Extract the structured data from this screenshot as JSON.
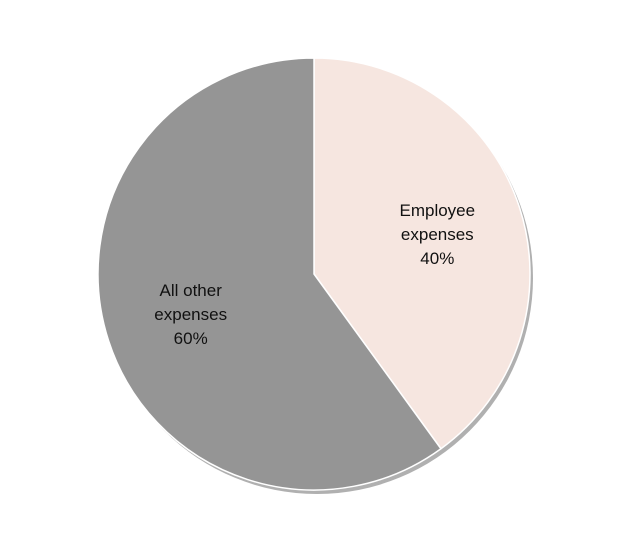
{
  "chart_data": {
    "type": "pie",
    "title": "",
    "slices": [
      {
        "label_lines": [
          "Employee",
          "expenses",
          "40%"
        ],
        "value": 40,
        "color": "#F6E6E0"
      },
      {
        "label_lines": [
          "All other",
          "expenses",
          "60%"
        ],
        "value": 60,
        "color": "#959595"
      }
    ],
    "start_angle_deg": 0,
    "direction": "clockwise",
    "legend": "none",
    "labels": "inside"
  }
}
